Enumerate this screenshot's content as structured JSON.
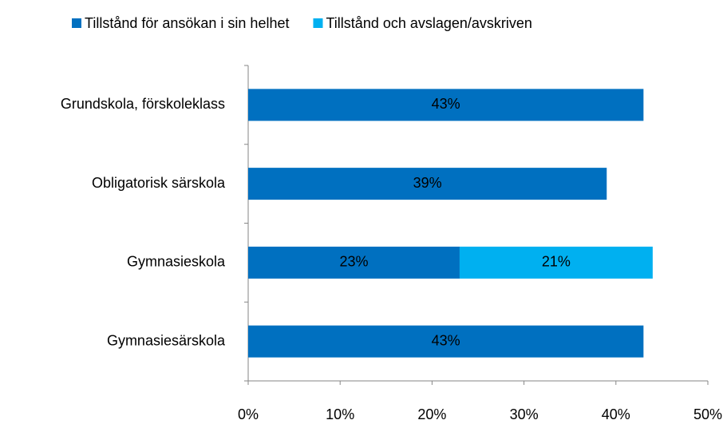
{
  "chart_data": {
    "type": "stacked-barh",
    "categories": [
      "Grundskola, förskoleklass",
      "Obligatorisk särskola",
      "Gymnasieskola",
      "Gymnasiesärskola"
    ],
    "series": [
      {
        "name": "Tillstånd för ansökan i sin helhet",
        "color": "#0070c0",
        "values": [
          43,
          39,
          23,
          43
        ],
        "value_labels": [
          "43%",
          "39%",
          "23%",
          "43%"
        ]
      },
      {
        "name": "Tillstånd och avslagen/avskriven",
        "color": "#00b0f0",
        "values": [
          null,
          null,
          21,
          null
        ],
        "value_labels": [
          null,
          null,
          "21%",
          null
        ]
      }
    ],
    "xlim": [
      0,
      50
    ],
    "xticks": [
      {
        "value": 0,
        "label": "0%"
      },
      {
        "value": 10,
        "label": "10%"
      },
      {
        "value": 20,
        "label": "20%"
      },
      {
        "value": 30,
        "label": "30%"
      },
      {
        "value": 40,
        "label": "40%"
      },
      {
        "value": 50,
        "label": "50%"
      }
    ],
    "legend": "top"
  }
}
